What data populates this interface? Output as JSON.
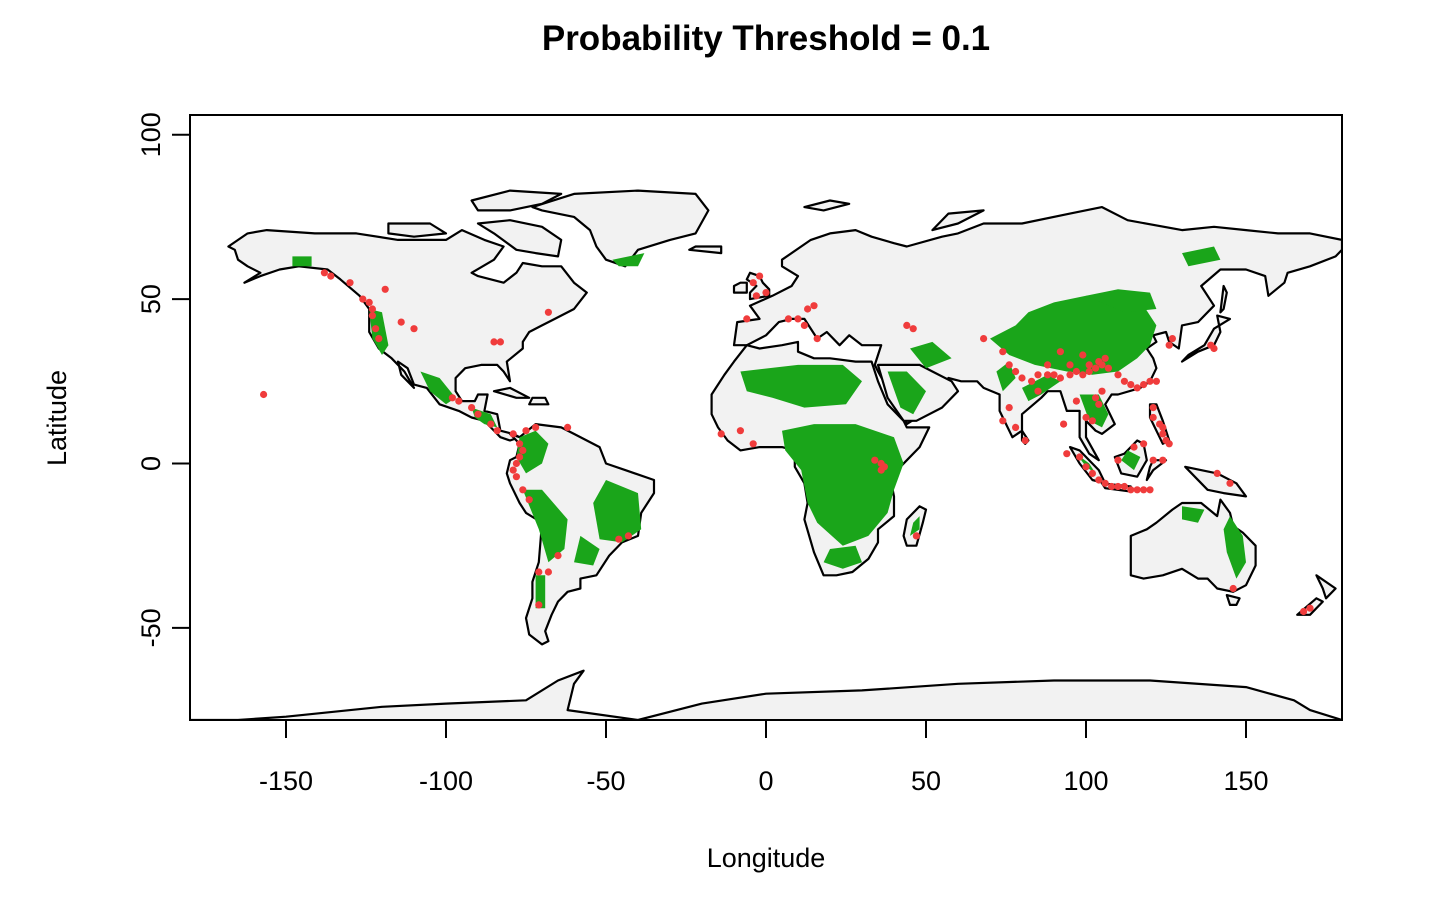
{
  "title": "Probability Threshold = 0.1",
  "xlabel": "Longitude",
  "ylabel": "Latitude",
  "chart_data": {
    "type": "scatter",
    "title": "Probability Threshold = 0.1",
    "xlabel": "Longitude",
    "ylabel": "Latitude",
    "xlim": [
      -180,
      180
    ],
    "ylim": [
      -78,
      106
    ],
    "xticks": [
      -150,
      -100,
      -50,
      0,
      50,
      100,
      150
    ],
    "yticks": [
      -50,
      0,
      50,
      100
    ],
    "grid": false,
    "legend": "none",
    "colors": {
      "land": "#f2f2f2",
      "coastline": "#000000",
      "predicted_suitable": "#1aa51a",
      "occurrence": "#f03c3c"
    },
    "series": [
      {
        "points": [
          [
            -138,
            58
          ],
          [
            -136,
            57
          ],
          [
            -130,
            55
          ],
          [
            -126,
            50
          ],
          [
            -124,
            49
          ],
          [
            -123,
            47
          ],
          [
            -123,
            45
          ],
          [
            -122,
            41
          ],
          [
            -121,
            38
          ],
          [
            -119,
            53
          ],
          [
            -114,
            43
          ],
          [
            -110,
            41
          ],
          [
            -85,
            37
          ],
          [
            -83,
            37
          ],
          [
            -68,
            46
          ],
          [
            -157,
            21
          ],
          [
            -98,
            20
          ],
          [
            -96,
            19
          ],
          [
            -92,
            17
          ],
          [
            -90,
            15
          ],
          [
            -86,
            12
          ],
          [
            -84,
            10
          ],
          [
            -79,
            9
          ],
          [
            -77,
            6
          ],
          [
            -76,
            4
          ],
          [
            -77,
            2
          ],
          [
            -78,
            0
          ],
          [
            -79,
            -2
          ],
          [
            -78,
            -4
          ],
          [
            -76,
            -8
          ],
          [
            -74,
            -11
          ],
          [
            -75,
            10
          ],
          [
            -72,
            11
          ],
          [
            -62,
            11
          ],
          [
            -43,
            -22
          ],
          [
            -46,
            -23
          ],
          [
            -68,
            -33
          ],
          [
            -71,
            -33
          ],
          [
            -71,
            -43
          ],
          [
            -65,
            -28
          ],
          [
            -14,
            9
          ],
          [
            -8,
            10
          ],
          [
            -4,
            6
          ],
          [
            -6,
            44
          ],
          [
            -3,
            51
          ],
          [
            -4,
            55
          ],
          [
            -2,
            57
          ],
          [
            0,
            52
          ],
          [
            7,
            44
          ],
          [
            10,
            44
          ],
          [
            15,
            48
          ],
          [
            13,
            47
          ],
          [
            12,
            42
          ],
          [
            16,
            38
          ],
          [
            46,
            41
          ],
          [
            44,
            42
          ],
          [
            34,
            1
          ],
          [
            36,
            0
          ],
          [
            37,
            -1
          ],
          [
            36,
            -2
          ],
          [
            47,
            -22
          ],
          [
            68,
            38
          ],
          [
            74,
            34
          ],
          [
            76,
            30
          ],
          [
            78,
            28
          ],
          [
            80,
            26
          ],
          [
            83,
            25
          ],
          [
            85,
            27
          ],
          [
            88,
            27
          ],
          [
            90,
            27
          ],
          [
            92,
            26
          ],
          [
            95,
            27
          ],
          [
            97,
            28
          ],
          [
            99,
            27
          ],
          [
            101,
            28
          ],
          [
            103,
            29
          ],
          [
            105,
            30
          ],
          [
            107,
            29
          ],
          [
            110,
            27
          ],
          [
            112,
            25
          ],
          [
            114,
            24
          ],
          [
            116,
            23
          ],
          [
            118,
            24
          ],
          [
            120,
            25
          ],
          [
            122,
            25
          ],
          [
            104,
            31
          ],
          [
            106,
            32
          ],
          [
            101,
            30
          ],
          [
            95,
            30
          ],
          [
            99,
            33
          ],
          [
            88,
            30
          ],
          [
            92,
            34
          ],
          [
            81,
            7
          ],
          [
            78,
            11
          ],
          [
            76,
            17
          ],
          [
            74,
            13
          ],
          [
            85,
            22
          ],
          [
            103,
            20
          ],
          [
            105,
            22
          ],
          [
            100,
            14
          ],
          [
            102,
            13
          ],
          [
            104,
            18
          ],
          [
            97,
            19
          ],
          [
            93,
            12
          ],
          [
            94,
            3
          ],
          [
            98,
            2
          ],
          [
            100,
            -1
          ],
          [
            102,
            -3
          ],
          [
            104,
            -5
          ],
          [
            106,
            -6
          ],
          [
            108,
            -7
          ],
          [
            110,
            -7
          ],
          [
            112,
            -7
          ],
          [
            114,
            -8
          ],
          [
            116,
            -8
          ],
          [
            118,
            -8
          ],
          [
            120,
            -8
          ],
          [
            118,
            6
          ],
          [
            115,
            5
          ],
          [
            110,
            1
          ],
          [
            121,
            17
          ],
          [
            121,
            14
          ],
          [
            123,
            12
          ],
          [
            124,
            9
          ],
          [
            125,
            7
          ],
          [
            126,
            6
          ],
          [
            124,
            11
          ],
          [
            121,
            1
          ],
          [
            124,
            1
          ],
          [
            127,
            38
          ],
          [
            126,
            36
          ],
          [
            140,
            35
          ],
          [
            139,
            36
          ],
          [
            141,
            -3
          ],
          [
            145,
            -6
          ],
          [
            146,
            -38
          ],
          [
            168,
            -45
          ],
          [
            170,
            -44
          ]
        ]
      }
    ]
  }
}
